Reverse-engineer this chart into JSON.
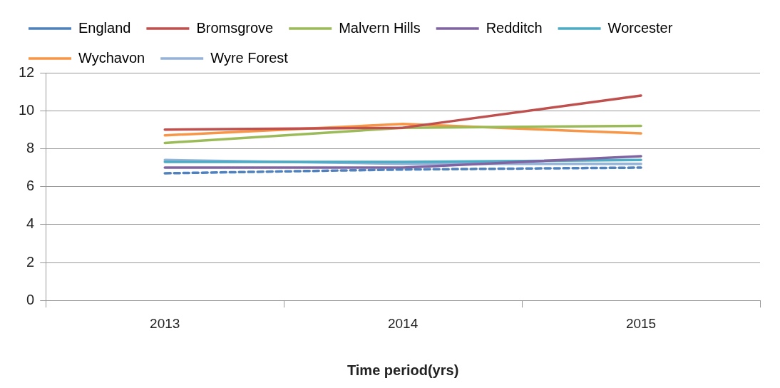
{
  "chart_data": {
    "type": "line",
    "xlabel": "Time period(yrs)",
    "categories": [
      "2013",
      "2014",
      "2015"
    ],
    "ylim": [
      0,
      12
    ],
    "yticks": [
      0,
      2,
      4,
      6,
      8,
      10,
      12
    ],
    "grid": "y",
    "legend": "top",
    "marker": "none",
    "series": [
      {
        "name": "England",
        "color": "#4f81bd",
        "values": [
          6.7,
          6.9,
          7.0
        ],
        "line_style": "dashed"
      },
      {
        "name": "Bromsgrove",
        "color": "#c0504d",
        "values": [
          9.0,
          9.1,
          10.8
        ]
      },
      {
        "name": "Malvern Hills",
        "color": "#9bbb59",
        "values": [
          8.3,
          9.1,
          9.2
        ]
      },
      {
        "name": "Redditch",
        "color": "#8064a2",
        "values": [
          7.0,
          7.0,
          7.6
        ]
      },
      {
        "name": "Worcester",
        "color": "#4bacc6",
        "values": [
          7.3,
          7.3,
          7.4
        ]
      },
      {
        "name": "Wychavon",
        "color": "#f79646",
        "values": [
          8.7,
          9.3,
          8.8
        ]
      },
      {
        "name": "Wyre Forest",
        "color": "#95b3d7",
        "values": [
          7.4,
          7.2,
          7.2
        ]
      }
    ]
  }
}
